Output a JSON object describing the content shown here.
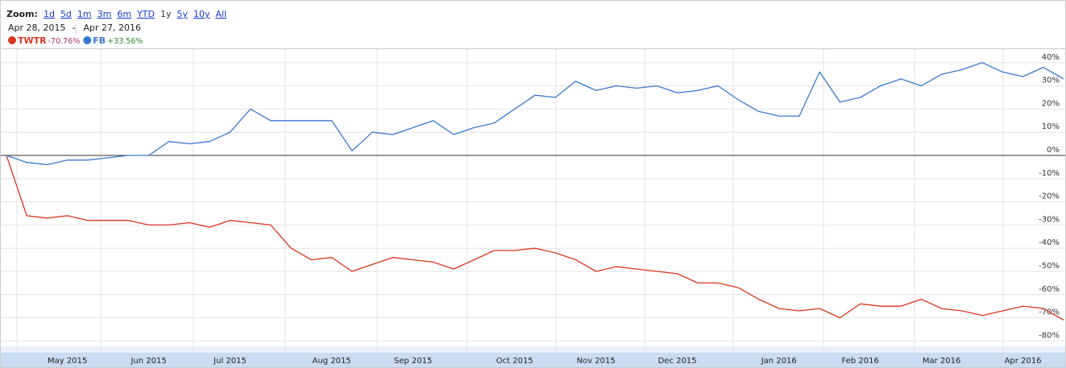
{
  "header": {
    "zoom_label": "Zoom:",
    "zoom_options": [
      "1d",
      "5d",
      "1m",
      "3m",
      "6m",
      "YTD",
      "1y",
      "5y",
      "10y",
      "All"
    ],
    "date_from": "Apr 28, 2015",
    "date_sep": "-",
    "date_to": "Apr 27, 2016"
  },
  "chart_data": {
    "type": "line",
    "categories": [
      null,
      null,
      null,
      "May 2015",
      null,
      null,
      null,
      "Jun 2015",
      null,
      null,
      null,
      "Jul 2015",
      null,
      null,
      null,
      null,
      "Aug 2015",
      null,
      null,
      null,
      "Sep 2015",
      null,
      null,
      null,
      null,
      "Oct 2015",
      null,
      null,
      null,
      "Nov 2015",
      null,
      null,
      null,
      "Dec 2015",
      null,
      null,
      null,
      null,
      "Jan 2016",
      null,
      null,
      null,
      "Feb 2016",
      null,
      null,
      null,
      "Mar 2016",
      null,
      null,
      null,
      "Apr 2016",
      null,
      null
    ],
    "series": [
      {
        "name": "TWTR",
        "change": "-70.76%",
        "color": "#d9361e",
        "change_color": "#b0306a",
        "values": [
          0,
          -26,
          -27,
          -26,
          -28,
          -28,
          -28,
          -30,
          -30,
          -29,
          -31,
          -28,
          -29,
          -30,
          -40,
          -45,
          -44,
          -50,
          -47,
          -44,
          -45,
          -46,
          -49,
          -45,
          -41,
          -41,
          -40,
          -42,
          -45,
          -50,
          -48,
          -49,
          -50,
          -51,
          -55,
          -55,
          -57,
          -62,
          -66,
          -67,
          -66,
          -70,
          -64,
          -65,
          -65,
          -62,
          -66,
          -67,
          -69,
          -67,
          -65,
          -66,
          -71
        ]
      },
      {
        "name": "FB",
        "change": "+33.56%",
        "color": "#3a78cf",
        "change_color": "#2a8a2a",
        "values": [
          0,
          -3,
          -4,
          -2,
          -2,
          -1,
          0,
          0,
          6,
          5,
          6,
          10,
          20,
          15,
          15,
          15,
          15,
          2,
          10,
          9,
          12,
          15,
          9,
          12,
          14,
          20,
          26,
          25,
          32,
          28,
          30,
          29,
          30,
          27,
          28,
          30,
          24,
          19,
          17,
          17,
          36,
          23,
          25,
          30,
          33,
          30,
          35,
          37,
          40,
          36,
          34,
          38,
          33
        ]
      }
    ],
    "ylim": [
      -81.6,
      45.5
    ],
    "yticks": [
      {
        "value": 40,
        "label": "40%"
      },
      {
        "value": 30,
        "label": "30%"
      },
      {
        "value": 20,
        "label": "20%"
      },
      {
        "value": 10,
        "label": "10%"
      },
      {
        "value": 0,
        "label": "0%"
      },
      {
        "value": -10,
        "label": "-10%"
      },
      {
        "value": -20,
        "label": "-20%"
      },
      {
        "value": -30,
        "label": "-30%"
      },
      {
        "value": -40,
        "label": "-40%"
      },
      {
        "value": -50,
        "label": "-50%"
      },
      {
        "value": -60,
        "label": "-60%"
      },
      {
        "value": -70,
        "label": "-70%"
      },
      {
        "value": -80,
        "label": "-80%"
      }
    ],
    "grid": true
  }
}
